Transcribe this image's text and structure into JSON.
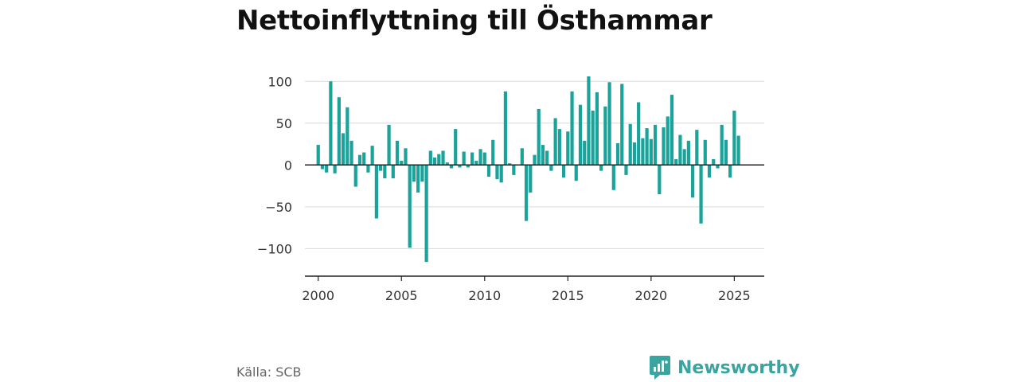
{
  "title": "Nettoinflyttning till Östhammar",
  "source": "Källa: SCB",
  "brand": {
    "name": "Newsworthy",
    "icon": "newsworthy-logo-icon",
    "color": "#3aa5a0"
  },
  "colors": {
    "bar": "#1aa39a",
    "grid": "#d9d9d9",
    "axis": "#222222"
  },
  "chart_data": {
    "type": "bar",
    "title": "Nettoinflyttning till Östhammar",
    "xlabel": "",
    "ylabel": "",
    "xlim": [
      1999.2,
      2026.8
    ],
    "ylim": [
      -133,
      105
    ],
    "yticks": [
      -100,
      -50,
      0,
      50,
      100
    ],
    "ytick_labels": [
      "−100",
      "−50",
      "0",
      "50",
      "100"
    ],
    "xticks": [
      2000,
      2005,
      2010,
      2015,
      2020,
      2025
    ],
    "xtick_labels": [
      "2000",
      "2005",
      "2010",
      "2015",
      "2020",
      "2025"
    ],
    "grid": true,
    "legend": "none",
    "x": [
      2000.0,
      2000.25,
      2000.5,
      2000.75,
      2001.0,
      2001.25,
      2001.5,
      2001.75,
      2002.0,
      2002.25,
      2002.5,
      2002.75,
      2003.0,
      2003.25,
      2003.5,
      2003.75,
      2004.0,
      2004.25,
      2004.5,
      2004.75,
      2005.0,
      2005.25,
      2005.5,
      2005.75,
      2006.0,
      2006.25,
      2006.5,
      2006.75,
      2007.0,
      2007.25,
      2007.5,
      2007.75,
      2008.0,
      2008.25,
      2008.5,
      2008.75,
      2009.0,
      2009.25,
      2009.5,
      2009.75,
      2010.0,
      2010.25,
      2010.5,
      2010.75,
      2011.0,
      2011.25,
      2011.5,
      2011.75,
      2012.0,
      2012.25,
      2012.5,
      2012.75,
      2013.0,
      2013.25,
      2013.5,
      2013.75,
      2014.0,
      2014.25,
      2014.5,
      2014.75,
      2015.0,
      2015.25,
      2015.5,
      2015.75,
      2016.0,
      2016.25,
      2016.5,
      2016.75,
      2017.0,
      2017.25,
      2017.5,
      2017.75,
      2018.0,
      2018.25,
      2018.5,
      2018.75,
      2019.0,
      2019.25,
      2019.5,
      2019.75,
      2020.0,
      2020.25,
      2020.5,
      2020.75,
      2021.0,
      2021.25,
      2021.5,
      2021.75,
      2022.0,
      2022.25,
      2022.5,
      2022.75,
      2023.0,
      2023.25,
      2023.5,
      2023.75,
      2024.0,
      2024.25,
      2024.5,
      2024.75,
      2025.0,
      2025.25,
      2025.5
    ],
    "values": [
      24,
      -5,
      -9,
      100,
      -10,
      81,
      38,
      69,
      29,
      -26,
      12,
      15,
      -9,
      23,
      -64,
      -7,
      -16,
      48,
      -16,
      29,
      5,
      20,
      -99,
      -20,
      -33,
      -20,
      -116,
      17,
      9,
      13,
      17,
      3,
      -4,
      43,
      -3,
      16,
      -3,
      15,
      5,
      19,
      15,
      -14,
      30,
      -17,
      -21,
      88,
      2,
      -12,
      0,
      20,
      -67,
      -33,
      12,
      67,
      24,
      17,
      -7,
      56,
      43,
      -15,
      40,
      88,
      -19,
      72,
      29,
      106,
      65,
      87,
      -7,
      70,
      99,
      -30,
      26,
      97,
      -12,
      49,
      27,
      75,
      32,
      44,
      31,
      48,
      -35,
      45,
      58,
      84,
      7,
      36,
      19,
      29,
      -39,
      42,
      -70,
      30,
      -15,
      7,
      -4,
      48,
      30,
      -15,
      65,
      35,
      0
    ]
  }
}
